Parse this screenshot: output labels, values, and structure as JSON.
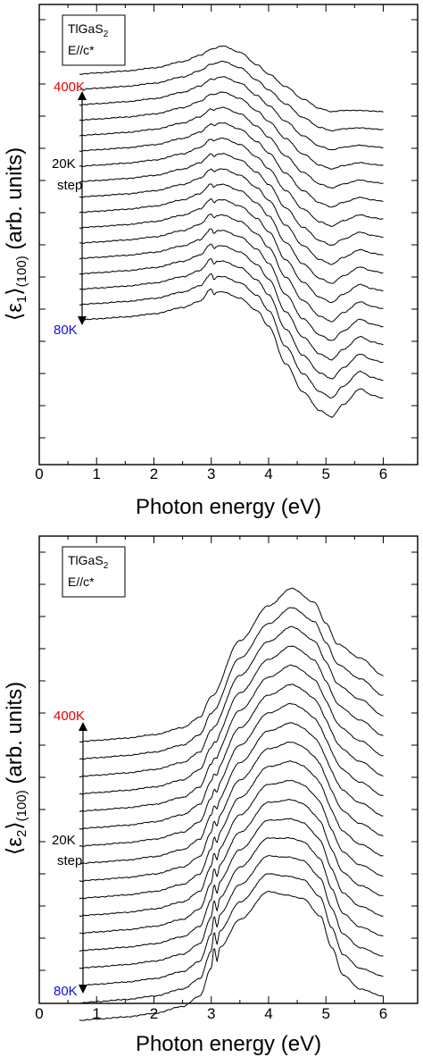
{
  "chart_data": [
    {
      "type": "line",
      "xlabel": "Photon energy (eV)",
      "ylabel_main": "⟨ε",
      "ylabel_sub1": "1",
      "ylabel_close": "⟩",
      "ylabel_sub2": "(100)",
      "ylabel_tail": " (arb. units)",
      "xlim": [
        0,
        6.6
      ],
      "xticks": [
        "0",
        "1",
        "2",
        "3",
        "4",
        "5",
        "6"
      ],
      "legend": {
        "line1_main": "TlGaS",
        "line1_sub": "2",
        "line2": "E//c*"
      },
      "annotations": {
        "top": "400K",
        "middle_1": "20K",
        "middle_2": "step",
        "bottom": "80K"
      },
      "colors": {
        "top": "#e00000",
        "bottom": "#1010d0",
        "curves": "#000000"
      },
      "series_count": 17,
      "series": [
        {
          "name": "400K",
          "x": [
            0.7,
            1.0,
            1.5,
            2.0,
            2.5,
            2.8,
            3.0,
            3.2,
            3.5,
            3.8,
            4.0,
            4.3,
            4.6,
            4.9,
            5.1,
            5.3,
            5.6,
            5.8,
            6.0
          ],
          "y": [
            0.5,
            0.52,
            0.55,
            0.6,
            0.7,
            0.8,
            0.9,
            0.95,
            0.85,
            0.65,
            0.5,
            0.3,
            0.1,
            -0.05,
            -0.1,
            -0.08,
            -0.08,
            -0.09,
            -0.1
          ]
        },
        {
          "name": "80K",
          "x": [
            0.7,
            1.0,
            1.5,
            2.0,
            2.5,
            2.8,
            3.0,
            3.05,
            3.1,
            3.2,
            3.5,
            3.8,
            4.0,
            4.3,
            4.6,
            4.9,
            5.1,
            5.3,
            5.6,
            5.8,
            6.0
          ],
          "y": [
            0.5,
            0.52,
            0.55,
            0.6,
            0.7,
            0.8,
            1.0,
            0.9,
            0.95,
            0.95,
            0.85,
            0.65,
            0.4,
            -0.2,
            -0.65,
            -0.95,
            -1.05,
            -0.85,
            -0.6,
            -0.7,
            -0.75
          ]
        }
      ]
    },
    {
      "type": "line",
      "xlabel": "Photon energy (eV)",
      "ylabel_main": "⟨ε",
      "ylabel_sub1": "2",
      "ylabel_close": "⟩",
      "ylabel_sub2": "(100)",
      "ylabel_tail": " (arb. units)",
      "xlim": [
        0,
        6.6
      ],
      "xticks": [
        "0",
        "1",
        "2",
        "3",
        "4",
        "5",
        "6"
      ],
      "legend": {
        "line1_main": "TlGaS",
        "line1_sub": "2",
        "line2": "E//c*"
      },
      "annotations": {
        "top": "400K",
        "middle_1": "20K",
        "middle_2": "step",
        "bottom": "80K"
      },
      "colors": {
        "top": "#e00000",
        "bottom": "#1010d0",
        "curves": "#000000"
      },
      "series_count": 17,
      "series": [
        {
          "name": "400K",
          "x": [
            0.7,
            1.0,
            1.5,
            2.0,
            2.5,
            2.8,
            3.0,
            3.5,
            4.0,
            4.4,
            4.8,
            5.0,
            5.2,
            5.6,
            6.0
          ],
          "y": [
            0.05,
            0.07,
            0.1,
            0.15,
            0.25,
            0.4,
            0.7,
            1.5,
            2.0,
            2.25,
            2.05,
            1.75,
            1.45,
            1.25,
            1.0
          ]
        },
        {
          "name": "80K",
          "x": [
            0.7,
            1.0,
            1.5,
            2.0,
            2.5,
            2.8,
            3.0,
            3.05,
            3.1,
            3.15,
            3.5,
            4.0,
            4.3,
            4.6,
            4.9,
            5.1,
            5.3,
            5.6,
            6.0
          ],
          "y": [
            0.05,
            0.07,
            0.1,
            0.15,
            0.25,
            0.4,
            0.8,
            1.1,
            0.9,
            1.1,
            1.5,
            1.9,
            1.85,
            1.8,
            1.55,
            1.1,
            0.7,
            0.5,
            0.4
          ]
        }
      ]
    }
  ]
}
